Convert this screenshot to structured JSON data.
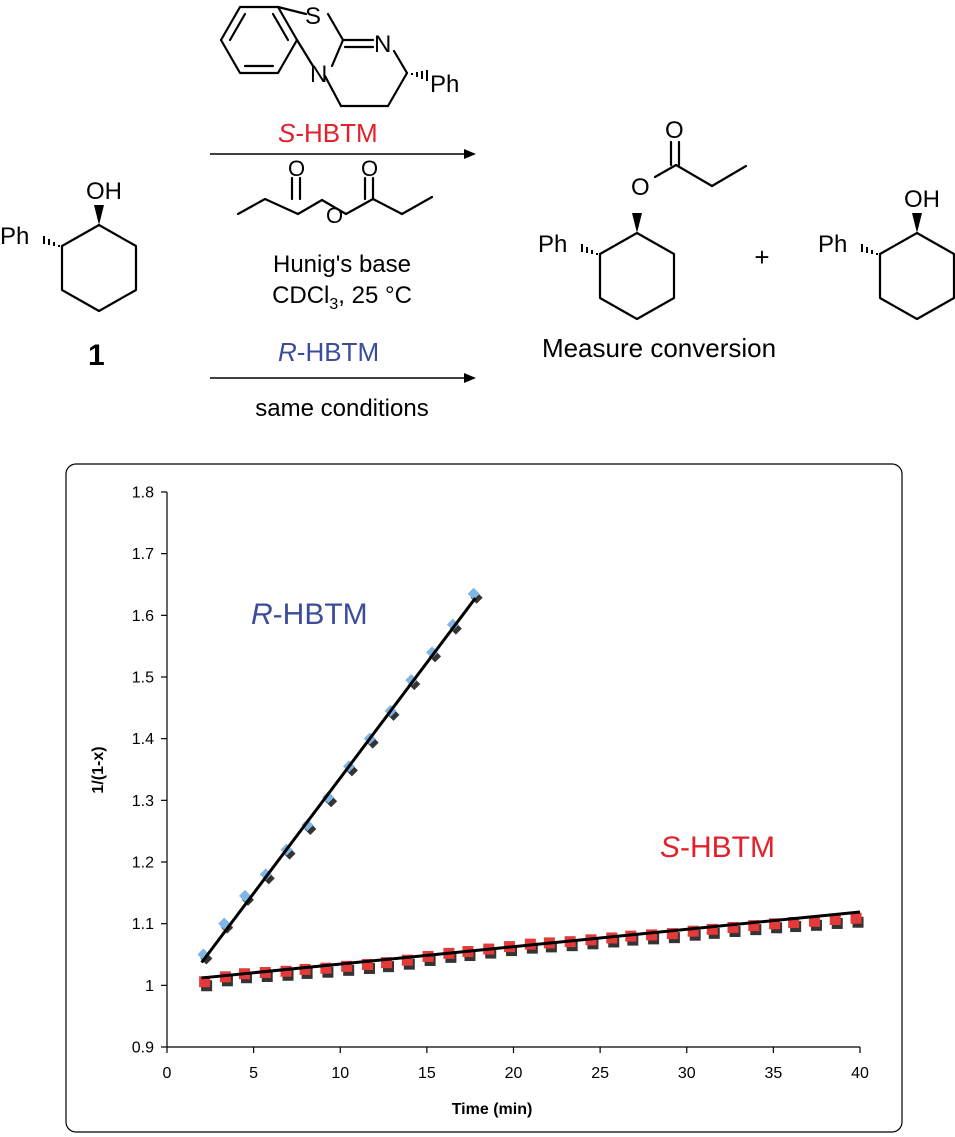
{
  "scheme": {
    "reactant_oh": "OH",
    "reactant_ph": "Ph",
    "reactant_number": "1",
    "catalyst_s_atom": "S",
    "catalyst_n_atom_top": "N",
    "catalyst_n_atom_bottom": "N",
    "catalyst_ph": "Ph",
    "s_label_italic": "S",
    "s_label_rest": "-HBTM",
    "anhydride_o_top_left": "O",
    "anhydride_o_top_right": "O",
    "anhydride_o_bridge": "O",
    "base": "Hunig's base",
    "solvent_main": "CDCl",
    "solvent_sub": "3",
    "solvent_temp": ", 25 °C",
    "r_label_italic": "R",
    "r_label_rest": "-HBTM",
    "same_conditions": "same conditions",
    "product_o_carbonyl": "O",
    "product_o_ester": "O",
    "product_ph": "Ph",
    "plus": "+",
    "recovered_oh": "OH",
    "recovered_ph": "Ph",
    "measure": "Measure conversion"
  },
  "colors": {
    "s_hbtm": "#e2212b",
    "r_hbtm": "#3b4c9b",
    "r_points": "#7fb6e6",
    "s_points": "#e53a3a",
    "fit_line": "#000000"
  },
  "chart_data": {
    "type": "scatter",
    "xlabel": "Time (min)",
    "ylabel": "1/(1-x)",
    "xlim": [
      0,
      40
    ],
    "ylim": [
      0.9,
      1.8
    ],
    "xticks": [
      0,
      5,
      10,
      15,
      20,
      25,
      30,
      35,
      40
    ],
    "yticks": [
      0.9,
      1,
      1.1,
      1.2,
      1.3,
      1.4,
      1.5,
      1.6,
      1.7,
      1.8
    ],
    "ytick_labels": [
      "0.9",
      "1",
      "1.1",
      "1.2",
      "1.3",
      "1.4",
      "1.5",
      "1.6",
      "1.7",
      "1.8"
    ],
    "grid": false,
    "series": [
      {
        "name_italic": "R",
        "name_rest": "-HBTM",
        "marker": "diamond",
        "x": [
          2.1,
          3.3,
          4.5,
          5.7,
          6.9,
          8.1,
          9.3,
          10.5,
          11.7,
          12.9,
          14.1,
          15.3,
          16.5,
          17.7
        ],
        "y": [
          1.05,
          1.1,
          1.145,
          1.18,
          1.22,
          1.26,
          1.305,
          1.355,
          1.4,
          1.445,
          1.495,
          1.54,
          1.585,
          1.635
        ],
        "fit": {
          "x": [
            2.0,
            17.8
          ],
          "y": [
            1.037,
            1.628
          ]
        }
      },
      {
        "name_italic": "S",
        "name_rest": "-HBTM",
        "marker": "square",
        "x": [
          2.2,
          3.4,
          4.5,
          5.7,
          6.9,
          8.0,
          9.2,
          10.4,
          11.6,
          12.7,
          13.9,
          15.1,
          16.3,
          17.4,
          18.6,
          19.8,
          21.0,
          22.1,
          23.3,
          24.5,
          25.7,
          26.8,
          28.0,
          29.2,
          30.4,
          31.5,
          32.7,
          33.9,
          35.1,
          36.2,
          37.4,
          38.6,
          39.8
        ],
        "y": [
          1.005,
          1.013,
          1.018,
          1.02,
          1.022,
          1.025,
          1.027,
          1.03,
          1.033,
          1.036,
          1.04,
          1.046,
          1.051,
          1.054,
          1.058,
          1.062,
          1.066,
          1.068,
          1.07,
          1.073,
          1.076,
          1.079,
          1.081,
          1.083,
          1.087,
          1.09,
          1.093,
          1.096,
          1.099,
          1.101,
          1.103,
          1.106,
          1.108
        ],
        "fit": {
          "x": [
            2.0,
            40.0
          ],
          "y": [
            1.012,
            1.119
          ]
        }
      }
    ]
  }
}
